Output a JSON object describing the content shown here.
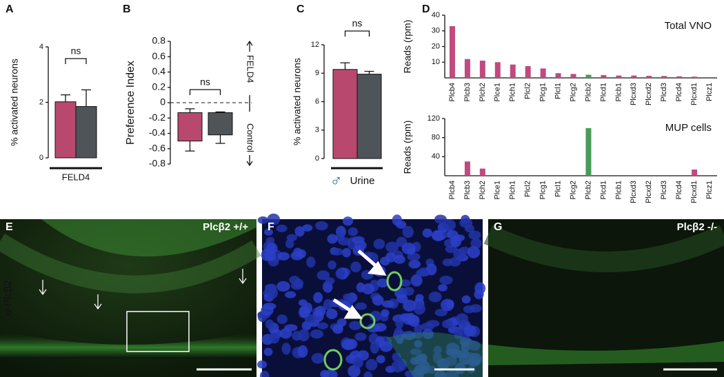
{
  "chart_data": [
    {
      "type": "bar",
      "panel": "A",
      "ylabel": "% activated neurons",
      "ylim": [
        0,
        4
      ],
      "yticks": [
        0,
        2,
        4
      ],
      "values": [
        2.02,
        1.85
      ],
      "errors": [
        0.25,
        0.6
      ],
      "colors": [
        "#b9486f",
        "#4f5458"
      ],
      "annotation": "ns",
      "xlabel": "FELD4"
    },
    {
      "type": "range_bar",
      "panel": "B",
      "ylabel": "Preference Index",
      "ylim": [
        -0.8,
        0.8
      ],
      "yticks": [
        -0.8,
        -0.6,
        -0.4,
        -0.2,
        0,
        0.2,
        0.4,
        0.6,
        0.8
      ],
      "refline": 0,
      "low": [
        -0.5,
        -0.42
      ],
      "high": [
        -0.13,
        -0.13
      ],
      "whisker_low": [
        -0.63,
        -0.53
      ],
      "whisker_high": [
        -0.08,
        -0.12
      ],
      "colors": [
        "#b9486f",
        "#4f5458"
      ],
      "annotation": "ns",
      "side_labels": [
        "FELD4",
        "Control"
      ]
    },
    {
      "type": "bar",
      "panel": "C",
      "ylabel": "% activated neurons",
      "ylim": [
        0,
        12
      ],
      "yticks": [
        0,
        3,
        6,
        9,
        12
      ],
      "values": [
        9.4,
        8.9
      ],
      "errors": [
        0.7,
        0.3
      ],
      "colors": [
        "#b9486f",
        "#4f5458"
      ],
      "annotation": "ns",
      "xlabel_symbol": "♂",
      "xlabel": "Urine"
    },
    {
      "type": "category_bar",
      "panel": "D",
      "title": "Total VNO",
      "ylabel": "Reads (rpm)",
      "ylim": [
        0,
        40
      ],
      "yticks": [
        10,
        20,
        30,
        40
      ],
      "categories": [
        "Plcb4",
        "Plcb3",
        "Plch2",
        "Plce1",
        "Plch1",
        "Plcl2",
        "Plcg1",
        "Plcl1",
        "Plcg2",
        "Plcb2",
        "Plcd1",
        "Plcb1",
        "Plcxd3",
        "Plcxd2",
        "Plcd3",
        "Plcd4",
        "Plcxd1",
        "Plcz1"
      ],
      "values": [
        33,
        12,
        11,
        10,
        8.5,
        7.5,
        6,
        3,
        2.5,
        2,
        1.8,
        1.5,
        1.5,
        1.3,
        1.2,
        1,
        0.8,
        0
      ],
      "colors": [
        "#c04a80",
        "#c04a80",
        "#c04a80",
        "#c04a80",
        "#c04a80",
        "#c04a80",
        "#c04a80",
        "#c04a80",
        "#c04a80",
        "#4a9a5a",
        "#c04a80",
        "#c04a80",
        "#c04a80",
        "#c04a80",
        "#c04a80",
        "#c04a80",
        "#c04a80",
        "#c04a80"
      ]
    },
    {
      "type": "category_bar",
      "title": "MUP cells",
      "ylabel": "Reads (rpm)",
      "ylim": [
        0,
        120
      ],
      "yticks": [
        40,
        80,
        120
      ],
      "categories": [
        "Plcb4",
        "Plcb3",
        "Plch2",
        "Plce1",
        "Plch1",
        "Plcl2",
        "Plcg1",
        "Plcl1",
        "Plcg2",
        "Plcb2",
        "Plcd1",
        "Plcb1",
        "Plcxd3",
        "Plcxd2",
        "Plcd3",
        "Plcd4",
        "Plcxd1",
        "Plcz1"
      ],
      "values": [
        0,
        30,
        15,
        0,
        0,
        0,
        0,
        0,
        0,
        100,
        0,
        0,
        0,
        0,
        0,
        0,
        13,
        0
      ],
      "colors": [
        "#c04a80",
        "#c04a80",
        "#c04a80",
        "#c04a80",
        "#c04a80",
        "#c04a80",
        "#c04a80",
        "#c04a80",
        "#c04a80",
        "#4a9a5a",
        "#c04a80",
        "#c04a80",
        "#c04a80",
        "#c04a80",
        "#c04a80",
        "#c04a80",
        "#c04a80",
        "#c04a80"
      ]
    }
  ],
  "stain_label": "α-Plcβ2",
  "image_panels": [
    {
      "letter": "E",
      "label": "Plcβ2 +/+"
    },
    {
      "letter": "F"
    },
    {
      "letter": "G",
      "label": "Plcβ2 -/-"
    }
  ]
}
